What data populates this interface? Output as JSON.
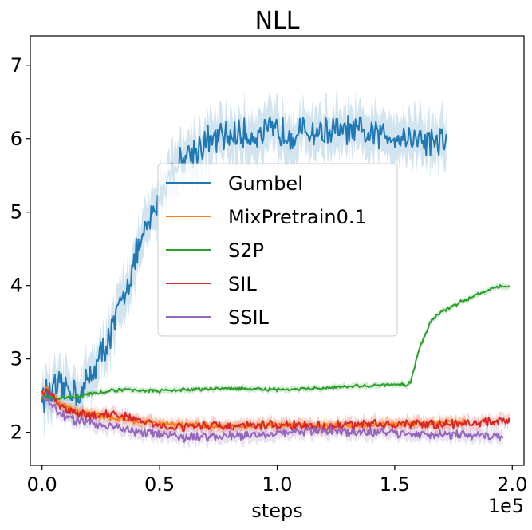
{
  "chart_data": {
    "type": "line",
    "title": "NLL",
    "xlabel": "steps",
    "ylabel": "",
    "x_offset_label": "1e5",
    "xlim": [
      -0.05,
      2.05
    ],
    "ylim": [
      1.55,
      7.4
    ],
    "xticks": [
      0.0,
      0.5,
      1.0,
      1.5,
      2.0
    ],
    "xtick_labels": [
      "0.0",
      "0.5",
      "1.0",
      "1.5",
      "2.0"
    ],
    "yticks": [
      2,
      3,
      4,
      5,
      6,
      7
    ],
    "ytick_labels": [
      "2",
      "3",
      "4",
      "5",
      "6",
      "7"
    ],
    "legend_position": "center-left",
    "series": [
      {
        "name": "Gumbel",
        "color": "#1f77b4",
        "noise": 0.18,
        "band": 0.3,
        "points": [
          [
            0.0,
            2.5
          ],
          [
            0.05,
            2.57
          ],
          [
            0.1,
            2.6
          ],
          [
            0.14,
            2.57
          ],
          [
            0.17,
            2.52
          ],
          [
            0.2,
            2.75
          ],
          [
            0.25,
            3.05
          ],
          [
            0.3,
            3.4
          ],
          [
            0.35,
            3.9
          ],
          [
            0.4,
            4.4
          ],
          [
            0.45,
            4.8
          ],
          [
            0.5,
            5.2
          ],
          [
            0.55,
            5.55
          ],
          [
            0.6,
            5.75
          ],
          [
            0.65,
            5.85
          ],
          [
            0.7,
            5.95
          ],
          [
            0.8,
            6.05
          ],
          [
            0.9,
            6.05
          ],
          [
            1.0,
            6.1
          ],
          [
            1.1,
            6.08
          ],
          [
            1.2,
            6.1
          ],
          [
            1.3,
            6.1
          ],
          [
            1.4,
            6.05
          ],
          [
            1.5,
            6.05
          ],
          [
            1.6,
            6.0
          ],
          [
            1.72,
            5.95
          ]
        ]
      },
      {
        "name": "MixPretrain0.1",
        "color": "#ff7f0e",
        "noise": 0.03,
        "band": 0.07,
        "points": [
          [
            0.0,
            2.5
          ],
          [
            0.02,
            2.6
          ],
          [
            0.05,
            2.45
          ],
          [
            0.1,
            2.35
          ],
          [
            0.2,
            2.25
          ],
          [
            0.3,
            2.2
          ],
          [
            0.4,
            2.15
          ],
          [
            0.5,
            2.12
          ],
          [
            0.6,
            2.1
          ],
          [
            0.8,
            2.08
          ],
          [
            1.0,
            2.1
          ],
          [
            1.2,
            2.1
          ],
          [
            1.4,
            2.1
          ],
          [
            1.6,
            2.12
          ],
          [
            1.8,
            2.14
          ]
        ]
      },
      {
        "name": "S2P",
        "color": "#2ca02c",
        "noise": 0.02,
        "band": 0.04,
        "points": [
          [
            0.0,
            2.48
          ],
          [
            0.05,
            2.46
          ],
          [
            0.1,
            2.47
          ],
          [
            0.2,
            2.52
          ],
          [
            0.3,
            2.57
          ],
          [
            0.4,
            2.58
          ],
          [
            0.5,
            2.56
          ],
          [
            0.6,
            2.58
          ],
          [
            0.8,
            2.6
          ],
          [
            1.0,
            2.58
          ],
          [
            1.2,
            2.6
          ],
          [
            1.4,
            2.64
          ],
          [
            1.55,
            2.65
          ],
          [
            1.57,
            2.7
          ],
          [
            1.6,
            3.1
          ],
          [
            1.65,
            3.5
          ],
          [
            1.7,
            3.65
          ],
          [
            1.8,
            3.8
          ],
          [
            1.9,
            3.95
          ],
          [
            1.95,
            4.0
          ],
          [
            1.99,
            3.98
          ]
        ]
      },
      {
        "name": "SIL",
        "color": "#d62728",
        "noise": 0.05,
        "band": 0.08,
        "points": [
          [
            0.0,
            2.5
          ],
          [
            0.02,
            2.6
          ],
          [
            0.05,
            2.45
          ],
          [
            0.1,
            2.3
          ],
          [
            0.2,
            2.22
          ],
          [
            0.3,
            2.25
          ],
          [
            0.4,
            2.18
          ],
          [
            0.5,
            2.08
          ],
          [
            0.6,
            2.08
          ],
          [
            0.7,
            2.1
          ],
          [
            0.8,
            2.08
          ],
          [
            1.0,
            2.1
          ],
          [
            1.2,
            2.08
          ],
          [
            1.4,
            2.12
          ],
          [
            1.6,
            2.1
          ],
          [
            1.8,
            2.12
          ],
          [
            1.99,
            2.17
          ]
        ]
      },
      {
        "name": "SSIL",
        "color": "#9467bd",
        "noise": 0.05,
        "band": 0.09,
        "points": [
          [
            0.0,
            2.5
          ],
          [
            0.05,
            2.35
          ],
          [
            0.1,
            2.2
          ],
          [
            0.2,
            2.12
          ],
          [
            0.3,
            2.08
          ],
          [
            0.4,
            2.02
          ],
          [
            0.5,
            1.98
          ],
          [
            0.6,
            1.92
          ],
          [
            0.7,
            1.95
          ],
          [
            0.8,
            1.96
          ],
          [
            0.9,
            1.97
          ],
          [
            1.0,
            2.0
          ],
          [
            1.2,
            2.02
          ],
          [
            1.4,
            2.0
          ],
          [
            1.6,
            1.98
          ],
          [
            1.8,
            1.96
          ],
          [
            1.96,
            1.95
          ]
        ]
      }
    ]
  }
}
